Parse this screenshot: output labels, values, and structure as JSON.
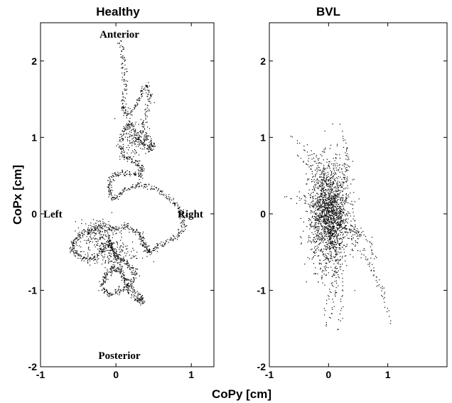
{
  "chart_data": [
    {
      "type": "scatter",
      "title": "Healthy",
      "xlabel": "CoPy [cm]",
      "ylabel": "CoPx [cm]",
      "xlim": [
        -1,
        1.3
      ],
      "ylim": [
        -2,
        2.5
      ],
      "xticks": [
        "-1",
        "0",
        "1"
      ],
      "yticks": [
        "-2",
        "-1",
        "0",
        "1",
        "2"
      ],
      "annotations": {
        "anterior": "Anterior",
        "posterior": "Posterior",
        "left": "Left",
        "right": "Right"
      },
      "marker_color": "#000000",
      "marker": "dot",
      "trajectory_waypoints": {
        "x": [
          0.05,
          0.1,
          0.12,
          0.08,
          0.15,
          0.3,
          0.4,
          0.45,
          0.35,
          0.4,
          0.5,
          0.42,
          0.3,
          0.2,
          0.1,
          0.05,
          0.1,
          0.25,
          0.35,
          0.3,
          0.1,
          -0.05,
          -0.1,
          -0.05,
          0.1,
          0.3,
          0.5,
          0.7,
          0.85,
          0.9,
          0.8,
          0.6,
          0.45,
          0.4,
          0.35,
          0.3,
          0.15,
          0.0,
          -0.15,
          -0.3,
          -0.45,
          -0.55,
          -0.6,
          -0.5,
          -0.35,
          -0.2,
          -0.1,
          0.0,
          0.15,
          0.25,
          0.2,
          0.05,
          -0.1,
          -0.2,
          -0.15,
          -0.05,
          0.05,
          0.15,
          0.3,
          0.35,
          0.25,
          0.1,
          0.05,
          -0.05,
          -0.1
        ],
        "y": [
          2.3,
          2.0,
          1.7,
          1.4,
          1.3,
          1.5,
          1.7,
          1.5,
          1.2,
          1.0,
          0.9,
          0.85,
          0.95,
          1.2,
          1.1,
          0.9,
          0.75,
          0.7,
          0.6,
          0.5,
          0.55,
          0.5,
          0.35,
          0.2,
          0.3,
          0.4,
          0.35,
          0.2,
          0.05,
          -0.15,
          -0.3,
          -0.4,
          -0.5,
          -0.45,
          -0.35,
          -0.25,
          -0.15,
          -0.2,
          -0.15,
          -0.2,
          -0.25,
          -0.35,
          -0.45,
          -0.55,
          -0.6,
          -0.5,
          -0.4,
          -0.55,
          -0.65,
          -0.75,
          -0.9,
          -1.0,
          -1.05,
          -0.95,
          -0.8,
          -0.7,
          -0.75,
          -0.9,
          -1.05,
          -1.15,
          -1.1,
          -0.9,
          -0.6,
          -0.45,
          -0.3
        ]
      }
    },
    {
      "type": "scatter",
      "title": "BVL",
      "xlabel": "CoPy [cm]",
      "ylabel": "",
      "xlim": [
        -1,
        2
      ],
      "ylim": [
        -2,
        2.5
      ],
      "xticks": [
        "-1",
        "0",
        "1"
      ],
      "yticks": [
        "-2",
        "-1",
        "0",
        "1",
        "2"
      ],
      "marker_color": "#000000",
      "marker": "dot",
      "distribution": {
        "center": [
          0.0,
          0.0
        ],
        "std_x": 0.17,
        "std_y": 0.33
      },
      "excursions": {
        "x": [
          -0.65,
          -0.55,
          -0.35,
          0.2,
          0.3,
          -0.1,
          0.15,
          0.5,
          0.8,
          0.95,
          1.05,
          -0.05,
          -0.2,
          -0.75
        ],
        "y": [
          1.05,
          0.8,
          0.9,
          1.15,
          0.9,
          -1.3,
          -1.55,
          -0.3,
          -0.6,
          -1.1,
          -1.45,
          -1.5,
          -0.9,
          0.25
        ]
      }
    }
  ]
}
